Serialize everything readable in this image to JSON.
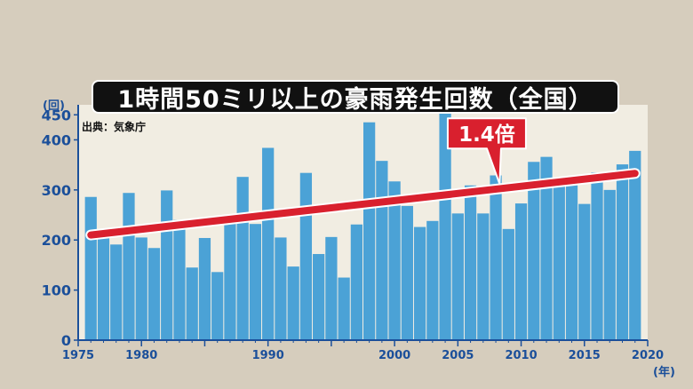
{
  "title": "1時間50ミリ以上の豪雨発生回数（全国）",
  "source_note": "出典：気象庁",
  "colors": {
    "background": "#d6cdbd",
    "plot_background": "#f1ede2",
    "bar": "#4ba2d6",
    "trend": "#d9202e",
    "axis_text": "#1b4f9a",
    "title_background": "#111111"
  },
  "chart_data": {
    "type": "bar",
    "title": "1時間50ミリ以上の豪雨発生回数（全国）",
    "ylabel": "(回)",
    "xlabel": "(年)",
    "ylim": [
      0,
      470
    ],
    "xlim": [
      1975,
      2020
    ],
    "yticks": [
      0,
      100,
      200,
      300,
      400,
      450
    ],
    "xticks": [
      1975,
      1980,
      1985,
      1990,
      1995,
      2000,
      2005,
      2010,
      2015,
      2020
    ],
    "xtick_labels": [
      "1975",
      "1980",
      "",
      "1990",
      "",
      "2000",
      "2005",
      "2010",
      "2015",
      "2020"
    ],
    "grid": false,
    "categories": [
      1976,
      1977,
      1978,
      1979,
      1980,
      1981,
      1982,
      1983,
      1984,
      1985,
      1986,
      1987,
      1988,
      1989,
      1990,
      1991,
      1992,
      1993,
      1994,
      1995,
      1996,
      1997,
      1998,
      1999,
      2000,
      2001,
      2002,
      2003,
      2004,
      2005,
      2006,
      2007,
      2008,
      2009,
      2010,
      2011,
      2012,
      2013,
      2014,
      2015,
      2016,
      2017,
      2018,
      2019
    ],
    "values": [
      286,
      220,
      191,
      294,
      205,
      184,
      299,
      240,
      145,
      204,
      136,
      237,
      326,
      232,
      384,
      205,
      147,
      334,
      172,
      206,
      125,
      231,
      435,
      358,
      317,
      268,
      226,
      238,
      462,
      253,
      309,
      253,
      329,
      222,
      273,
      356,
      366,
      318,
      316,
      272,
      335,
      300,
      351,
      378
    ],
    "trend": {
      "label": "1.4倍",
      "start": {
        "x": 1976,
        "y": 210
      },
      "end": {
        "x": 2019,
        "y": 333
      }
    }
  }
}
